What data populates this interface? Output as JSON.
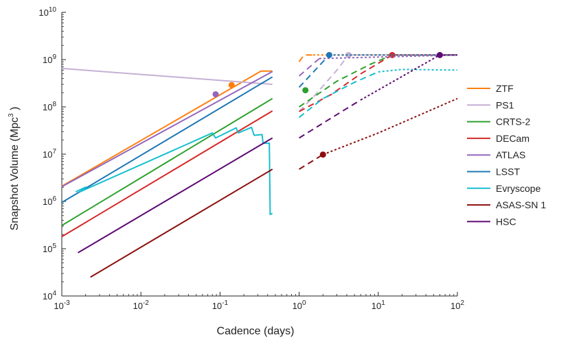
{
  "chart_data": {
    "type": "line",
    "title": "",
    "xlabel": "Cadence (days)",
    "ylabel": "Snapshot Volume (Mpc",
    "ylabel_sup": "3",
    "ylabel_tail": " )",
    "xscale": "log",
    "yscale": "log",
    "xlim": [
      0.001,
      100
    ],
    "ylim": [
      10000,
      10000000000
    ],
    "legend_position": "right",
    "xticks": [
      {
        "value": 0.001,
        "base": "10",
        "exp": "-3"
      },
      {
        "value": 0.01,
        "base": "10",
        "exp": "-2"
      },
      {
        "value": 0.1,
        "base": "10",
        "exp": "-1"
      },
      {
        "value": 1,
        "base": "10",
        "exp": "0"
      },
      {
        "value": 10,
        "base": "10",
        "exp": "1"
      },
      {
        "value": 100,
        "base": "10",
        "exp": "2"
      }
    ],
    "yticks": [
      {
        "value": 10000,
        "base": "10",
        "exp": "4"
      },
      {
        "value": 100000,
        "base": "10",
        "exp": "5"
      },
      {
        "value": 1000000,
        "base": "10",
        "exp": "6"
      },
      {
        "value": 10000000,
        "base": "10",
        "exp": "7"
      },
      {
        "value": 100000000,
        "base": "10",
        "exp": "8"
      },
      {
        "value": 1000000000,
        "base": "10",
        "exp": "9"
      },
      {
        "value": 10000000000,
        "base": "10",
        "exp": "10"
      }
    ],
    "series": [
      {
        "name": "ZTF",
        "color": "#ff7f0e",
        "line": [
          [
            0.001,
            2100000
          ],
          [
            0.33,
            570000000
          ],
          [
            0.46,
            570000000
          ]
        ],
        "dashed": [
          [
            1.0,
            900000000
          ],
          [
            1.15,
            1250000000
          ],
          [
            1.5,
            1250000000
          ]
        ],
        "dotted": [
          [
            1.5,
            1250000000
          ],
          [
            100,
            1250000000
          ]
        ],
        "marker": [
          0.14,
          290000000
        ]
      },
      {
        "name": "PS1",
        "color": "#c5b0d5",
        "line": [
          [
            0.001,
            650000000
          ],
          [
            0.46,
            300000000
          ]
        ],
        "dashed": [
          [
            1.0,
            80000000
          ],
          [
            1.6,
            180000000
          ],
          [
            3.0,
            600000000
          ],
          [
            4.2,
            1250000000
          ]
        ],
        "dotted": [
          [
            4.2,
            1250000000
          ],
          [
            100,
            1250000000
          ]
        ],
        "marker": [
          4.2,
          1250000000
        ]
      },
      {
        "name": "CRTS-2",
        "color": "#2ca02c",
        "line": [
          [
            0.001,
            310000
          ],
          [
            0.46,
            150000000
          ]
        ],
        "dashed": [
          [
            1.0,
            100000000
          ],
          [
            3.0,
            350000000
          ],
          [
            8.0,
            800000000
          ],
          [
            15.0,
            1250000000
          ]
        ],
        "dotted": [
          [
            15.0,
            1250000000
          ],
          [
            100,
            1250000000
          ]
        ],
        "marker": [
          1.2,
          225000000
        ]
      },
      {
        "name": "DECam",
        "color": "#d62728",
        "line": [
          [
            0.001,
            180000
          ],
          [
            0.46,
            82000000
          ]
        ],
        "dashed": [
          [
            1.0,
            80000000
          ],
          [
            2.5,
            180000000
          ],
          [
            6.0,
            500000000
          ],
          [
            15.0,
            1250000000
          ]
        ],
        "dotted": [
          [
            15.0,
            1250000000
          ],
          [
            100,
            1250000000
          ]
        ],
        "marker": [
          15.0,
          1250000000
        ]
      },
      {
        "name": "ATLAS",
        "color": "#9467bd",
        "line": [
          [
            0.001,
            2050000
          ],
          [
            0.46,
            560000000
          ]
        ],
        "dashed": [
          [
            1.0,
            450000000
          ],
          [
            1.8,
            1050000000
          ]
        ],
        "dotted": [
          [
            1.8,
            1050000000
          ],
          [
            100,
            1250000000
          ]
        ],
        "marker": [
          0.088,
          185000000
        ]
      },
      {
        "name": "LSST",
        "color": "#1f77b4",
        "line": [
          [
            0.001,
            950000
          ],
          [
            0.46,
            430000000
          ]
        ],
        "dashed": [
          [
            1.0,
            260000000
          ],
          [
            2.4,
            1250000000
          ]
        ],
        "dotted": [
          [
            2.4,
            1250000000
          ],
          [
            100,
            1250000000
          ]
        ],
        "marker": [
          2.4,
          1250000000
        ]
      },
      {
        "name": "Evryscope",
        "color": "#17becf",
        "line": [
          [
            0.0015,
            1600000
          ],
          [
            0.002,
            2000000
          ],
          [
            0.0017,
            1600000
          ],
          [
            0.08,
            28000000
          ],
          [
            0.088,
            22000000
          ],
          [
            0.16,
            36000000
          ],
          [
            0.17,
            28000000
          ],
          [
            0.25,
            37000000
          ],
          [
            0.27,
            25000000
          ],
          [
            0.34,
            26000000
          ],
          [
            0.35,
            17000000
          ],
          [
            0.42,
            17000000
          ],
          [
            0.43,
            530000
          ],
          [
            0.46,
            560000
          ]
        ],
        "dashed": [
          [
            1.0,
            60000000
          ],
          [
            2.0,
            150000000
          ],
          [
            5.0,
            330000000
          ],
          [
            10.0,
            550000000
          ]
        ],
        "dotted": [
          [
            10.0,
            550000000
          ],
          [
            20.0,
            620000000
          ],
          [
            100,
            600000000
          ]
        ],
        "marker": null
      },
      {
        "name": "ASAS-SN 1",
        "color": "#8c0e0e",
        "line": [
          [
            0.0023,
            25000
          ],
          [
            0.46,
            4800000
          ]
        ],
        "dashed": [
          [
            1.0,
            4800000
          ],
          [
            2.0,
            9800000
          ]
        ],
        "dotted": [
          [
            2.0,
            9800000
          ],
          [
            10.0,
            28000000
          ],
          [
            100,
            150000000
          ]
        ],
        "marker": [
          2.0,
          9800000
        ]
      },
      {
        "name": "HSC",
        "color": "#5e0a73",
        "line": [
          [
            0.0016,
            82000
          ],
          [
            0.46,
            22000000
          ]
        ],
        "dashed": [
          [
            1.0,
            22000000
          ],
          [
            2.2,
            50000000
          ],
          [
            6.0,
            140000000
          ]
        ],
        "dotted": [
          [
            6.0,
            140000000
          ],
          [
            60,
            1250000000
          ],
          [
            100,
            1250000000
          ]
        ],
        "marker": [
          60,
          1250000000
        ]
      }
    ]
  }
}
